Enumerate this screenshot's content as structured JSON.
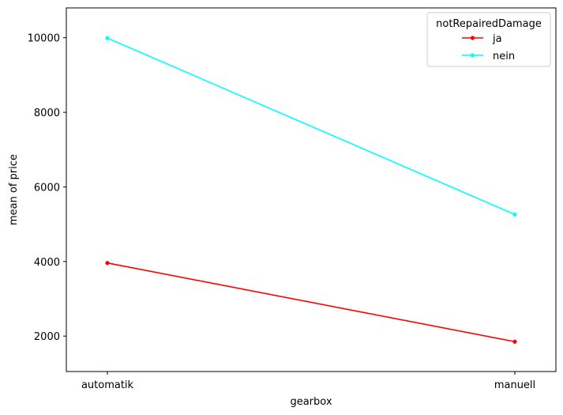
{
  "chart_data": {
    "type": "line",
    "title": "",
    "xlabel": "gearbox",
    "ylabel": "mean of price",
    "categories": [
      "automatik",
      "manuell"
    ],
    "ylim": [
      1050,
      10800
    ],
    "yticks": [
      2000,
      4000,
      6000,
      8000,
      10000
    ],
    "grid": false,
    "legend": {
      "title": "notRepairedDamage",
      "placement": "top-right"
    },
    "series": [
      {
        "name": "ja",
        "color": "#ff0000",
        "marker": "circle",
        "values": [
          3960,
          1850
        ]
      },
      {
        "name": "nein",
        "color": "#00ffff",
        "marker": "circle",
        "values": [
          9990,
          5260
        ]
      }
    ]
  }
}
